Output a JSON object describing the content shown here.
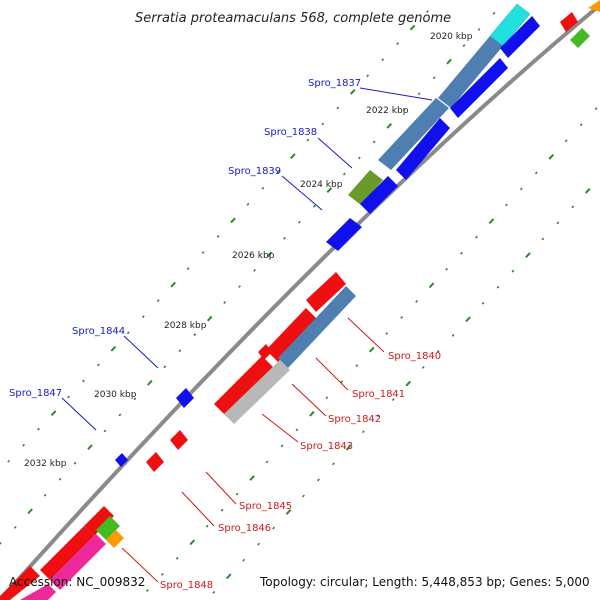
{
  "title": "Serratia proteamaculans 568, complete genome",
  "ticks": [
    "2020 kbp",
    "2022 kbp",
    "2024 kbp",
    "2026 kbp",
    "2028 kbp",
    "2030 kbp",
    "2032 kbp"
  ],
  "forward_labels": [
    "Spro_1837",
    "Spro_1838",
    "Spro_1839",
    "Spro_1844",
    "Spro_1847"
  ],
  "reverse_labels": [
    "Spro_1840",
    "Spro_1841",
    "Spro_1842",
    "Spro_1843",
    "Spro_1845",
    "Spro_1846",
    "Spro_1848"
  ],
  "footer": {
    "accession": "Accession: NC_009832",
    "topology": "Topology: circular; Length: 5,448,853 bp; Genes: 5,000"
  },
  "colors": {
    "backbone": "#8a8a8a",
    "forward_label": "#1a1acc",
    "reverse_label": "#cc1a1a",
    "gene_blue": "#1010ee",
    "gene_red": "#ee1010",
    "gene_steel": "#4f7fb0",
    "gene_grey": "#b8b8b8",
    "gene_cyan": "#22e0e0",
    "gene_green": "#44bb22",
    "gene_orange": "#ff9900",
    "gene_pink": "#ee2a9a",
    "tick_green": "#2a8a2a"
  }
}
